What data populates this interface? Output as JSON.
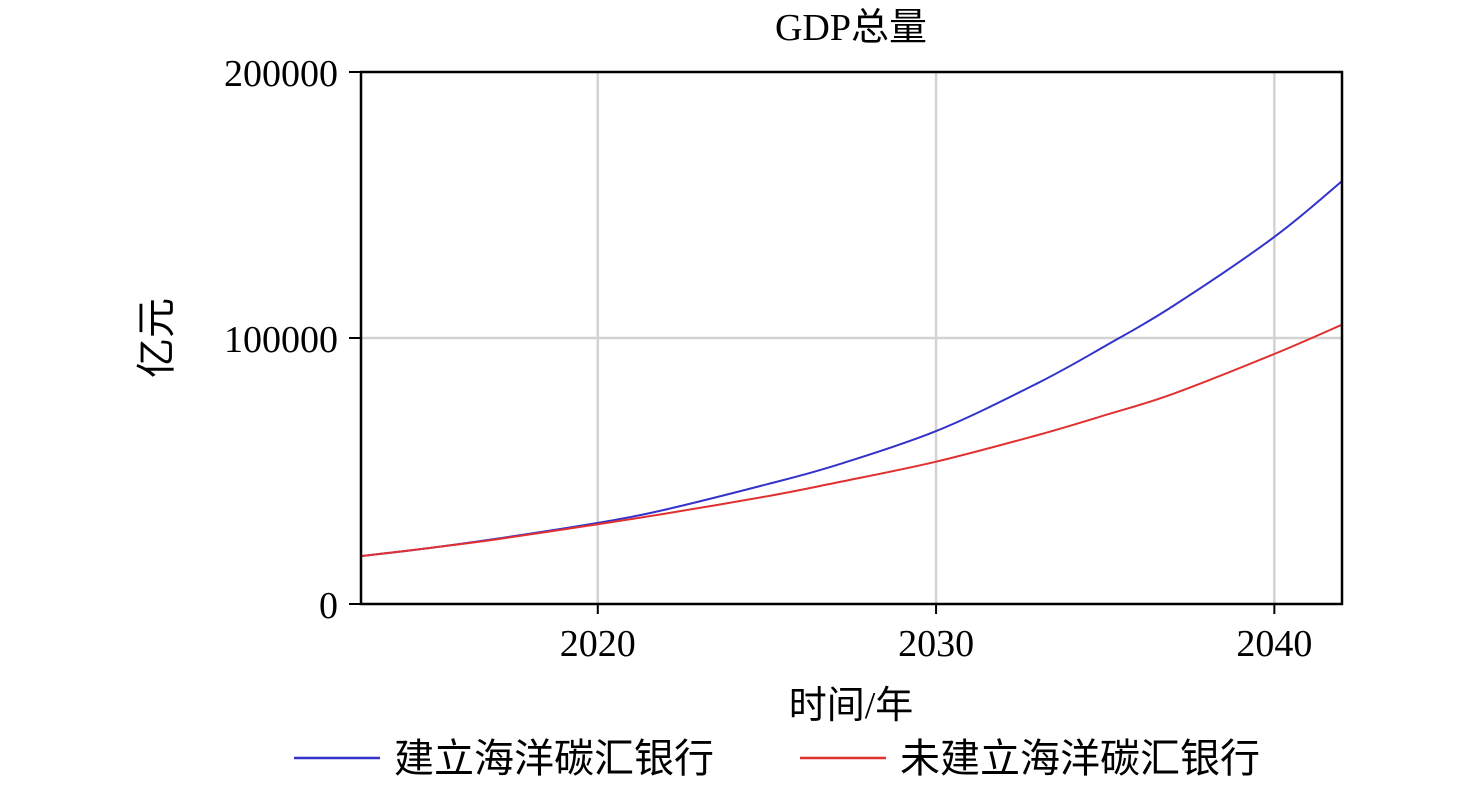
{
  "chart_data": {
    "type": "line",
    "title": "GDP总量",
    "xlabel": "时间/年",
    "ylabel": "亿元",
    "xlim": [
      2013,
      2042
    ],
    "ylim": [
      0,
      200000
    ],
    "x_ticks": [
      2020,
      2030,
      2040
    ],
    "y_ticks": [
      0,
      100000,
      200000
    ],
    "x_tick_labels": [
      "2020",
      "2030",
      "2040"
    ],
    "y_tick_labels": [
      "0",
      "100000",
      "200000"
    ],
    "grid": true,
    "legend_position": "bottom",
    "series": [
      {
        "name": "建立海洋碳汇银行",
        "color": "#3333cc",
        "x": [
          2013,
          2015,
          2017,
          2020,
          2022,
          2025,
          2027,
          2030,
          2033,
          2035,
          2037,
          2040,
          2042
        ],
        "y": [
          18000,
          21000,
          24500,
          30500,
          35500,
          45000,
          52000,
          65000,
          83000,
          97000,
          112000,
          138000,
          159000
        ]
      },
      {
        "name": "未建立海洋碳汇银行",
        "color": "#e03030",
        "x": [
          2013,
          2015,
          2017,
          2020,
          2022,
          2025,
          2027,
          2030,
          2033,
          2035,
          2037,
          2040,
          2042
        ],
        "y": [
          18000,
          21000,
          24300,
          30000,
          34000,
          40500,
          45500,
          53500,
          63500,
          71000,
          79000,
          94000,
          105000
        ]
      }
    ]
  }
}
